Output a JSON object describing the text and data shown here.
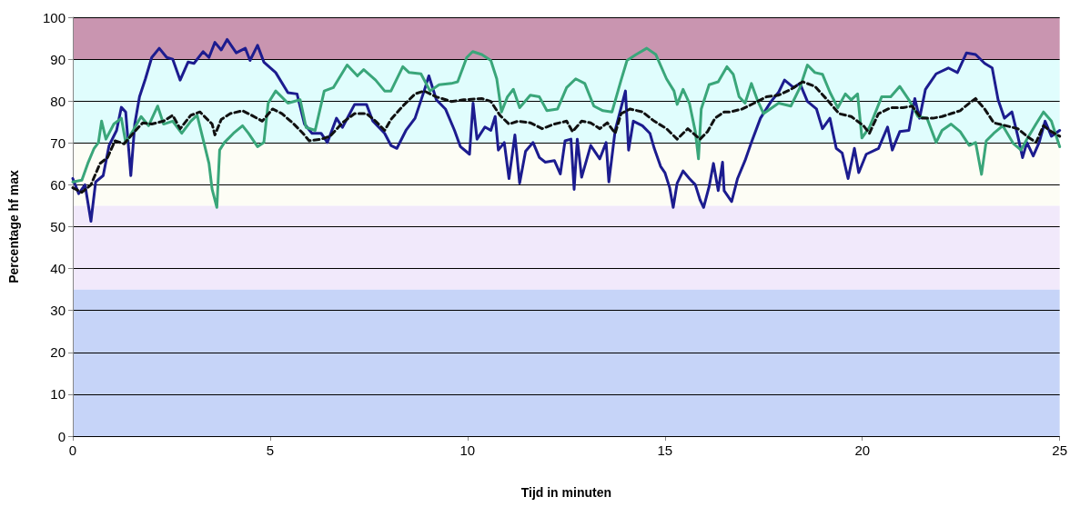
{
  "chart_data": {
    "type": "line",
    "xlabel": "Tijd in minuten",
    "ylabel": "Percentage hf max",
    "xlim": [
      0,
      25
    ],
    "xticks": [
      0,
      5,
      10,
      15,
      20,
      25
    ],
    "ylim": [
      0,
      100
    ],
    "yticks": [
      0,
      10,
      20,
      30,
      40,
      50,
      60,
      70,
      80,
      90,
      100
    ],
    "grid": "y",
    "marker": "none",
    "bands": [
      {
        "axis": "y",
        "from": 90,
        "to": 100,
        "color": "#c995b0"
      },
      {
        "axis": "y",
        "from": 70,
        "to": 90,
        "color": "#e0fdfd"
      },
      {
        "axis": "y",
        "from": 55,
        "to": 70,
        "color": "#fdfdf5"
      },
      {
        "axis": "y",
        "from": 35,
        "to": 55,
        "color": "#f1e9fb"
      },
      {
        "axis": "y",
        "from": 0,
        "to": 35,
        "color": "#c6d4f8"
      }
    ],
    "series": [
      {
        "color": "#1c1c8f",
        "line_style": "solid",
        "x": [
          0,
          0.15,
          0.31,
          0.46,
          0.58,
          0.77,
          0.92,
          1.11,
          1.23,
          1.34,
          1.47,
          1.57,
          1.69,
          1.84,
          2.0,
          2.19,
          2.38,
          2.53,
          2.72,
          2.92,
          3.07,
          3.3,
          3.45,
          3.6,
          3.76,
          3.91,
          4.14,
          4.37,
          4.49,
          4.68,
          4.84,
          5.14,
          5.45,
          5.68,
          5.87,
          6.06,
          6.29,
          6.45,
          6.68,
          6.83,
          7.14,
          7.44,
          7.6,
          7.9,
          8.06,
          8.21,
          8.44,
          8.67,
          8.9,
          9.02,
          9.21,
          9.44,
          9.67,
          9.82,
          10.05,
          10.14,
          10.24,
          10.44,
          10.59,
          10.7,
          10.78,
          10.93,
          11.05,
          11.2,
          11.32,
          11.47,
          11.66,
          11.82,
          11.97,
          12.2,
          12.35,
          12.47,
          12.62,
          12.7,
          12.78,
          12.89,
          13.12,
          13.35,
          13.51,
          13.58,
          13.74,
          14.0,
          14.08,
          14.2,
          14.43,
          14.62,
          14.73,
          14.89,
          15.0,
          15.12,
          15.21,
          15.31,
          15.46,
          15.62,
          15.77,
          15.89,
          15.98,
          16.12,
          16.23,
          16.35,
          16.46,
          16.5,
          16.69,
          16.84,
          17.03,
          17.19,
          17.42,
          17.69,
          17.88,
          18.03,
          18.26,
          18.42,
          18.61,
          18.84,
          18.99,
          19.18,
          19.34,
          19.49,
          19.64,
          19.8,
          19.91,
          20.1,
          20.41,
          20.64,
          20.76,
          20.95,
          21.18,
          21.33,
          21.45,
          21.6,
          21.87,
          22.18,
          22.41,
          22.64,
          22.87,
          23.1,
          23.29,
          23.44,
          23.6,
          23.79,
          23.94,
          24.06,
          24.17,
          24.33,
          24.48,
          24.63,
          24.79,
          25
        ],
        "values": [
          61.5,
          57.9,
          60,
          51.3,
          60.7,
          62.2,
          69.4,
          73,
          78.5,
          77.4,
          62.2,
          74.5,
          81,
          85.3,
          90.4,
          92.6,
          90.4,
          90,
          85,
          89.3,
          89,
          91.8,
          90.4,
          94,
          92.2,
          94.7,
          91.5,
          92.6,
          89.7,
          93.3,
          89.3,
          86.8,
          82,
          81.7,
          74.5,
          72.3,
          72.3,
          70.1,
          75.9,
          73.7,
          79.2,
          79.2,
          75.2,
          72.3,
          69.4,
          68.7,
          73,
          75.9,
          82.4,
          86,
          80.3,
          78.1,
          73,
          69.1,
          67.3,
          79.5,
          70.9,
          73.8,
          73,
          76.3,
          68.3,
          70.1,
          61.5,
          71.9,
          60.4,
          68,
          70.1,
          66.5,
          65.4,
          65.8,
          62.6,
          70.5,
          70.9,
          58.9,
          70.9,
          61.8,
          69.4,
          66.2,
          70.1,
          60.7,
          73,
          82.4,
          68.3,
          75.2,
          74.1,
          72.3,
          68.7,
          64.4,
          62.9,
          59.3,
          54.6,
          60.4,
          63.3,
          61.5,
          60,
          56.4,
          54.6,
          59.6,
          65.1,
          58.6,
          65.4,
          58.6,
          56,
          61.5,
          65.8,
          70.1,
          75.9,
          79.9,
          82.1,
          85,
          83.2,
          84.2,
          79.9,
          78.1,
          73.4,
          75.9,
          68.7,
          67.6,
          61.5,
          68.7,
          62.9,
          67.3,
          68.7,
          73.8,
          68.3,
          72.7,
          73,
          80.6,
          75.9,
          82.8,
          86.5,
          87.9,
          86.8,
          91.5,
          91.1,
          89,
          87.9,
          80.3,
          75.9,
          77.4,
          71.6,
          66.5,
          70.1,
          66.9,
          70.1,
          75.2,
          71.6,
          73
        ]
      },
      {
        "color": "#3aa67a",
        "line_style": "solid",
        "x": [
          0,
          0.23,
          0.38,
          0.54,
          0.65,
          0.73,
          0.84,
          1.04,
          1.23,
          1.34,
          1.53,
          1.73,
          1.92,
          2.15,
          2.3,
          2.53,
          2.76,
          2.99,
          3.15,
          3.3,
          3.45,
          3.53,
          3.65,
          3.72,
          3.84,
          4.07,
          4.3,
          4.45,
          4.68,
          4.84,
          4.95,
          5.14,
          5.45,
          5.76,
          5.91,
          6.14,
          6.37,
          6.6,
          6.95,
          7.21,
          7.37,
          7.67,
          7.9,
          8.06,
          8.36,
          8.52,
          8.82,
          9.05,
          9.28,
          9.59,
          9.75,
          9.98,
          10.13,
          10.36,
          10.59,
          10.74,
          10.86,
          11.01,
          11.16,
          11.32,
          11.59,
          11.82,
          12.01,
          12.28,
          12.51,
          12.74,
          12.97,
          13.2,
          13.43,
          13.66,
          13.89,
          14.04,
          14.27,
          14.54,
          14.77,
          15.04,
          15.23,
          15.31,
          15.46,
          15.62,
          15.77,
          15.85,
          15.92,
          16.12,
          16.35,
          16.57,
          16.73,
          16.88,
          17.03,
          17.19,
          17.34,
          17.5,
          17.88,
          18.19,
          18.42,
          18.61,
          18.8,
          18.99,
          19.18,
          19.38,
          19.57,
          19.72,
          19.88,
          19.99,
          20.18,
          20.49,
          20.72,
          20.95,
          21.18,
          21.41,
          21.64,
          21.87,
          22.02,
          22.25,
          22.48,
          22.71,
          22.87,
          23.02,
          23.14,
          23.33,
          23.56,
          23.83,
          24.02,
          24.17,
          24.4,
          24.59,
          24.79,
          25
        ],
        "values": [
          60.7,
          61.1,
          65.1,
          68.7,
          70.1,
          75.2,
          70.9,
          74.5,
          75.9,
          70.1,
          73,
          76.3,
          74.1,
          78.8,
          74.5,
          75.2,
          72.3,
          75.2,
          76.6,
          70.9,
          65.1,
          58.9,
          54.6,
          68.3,
          70.1,
          72.3,
          74.1,
          72.3,
          69.1,
          70.1,
          79.5,
          82.4,
          79.5,
          80.3,
          73.7,
          73,
          82.4,
          83.2,
          88.6,
          86,
          87.5,
          85,
          82.4,
          82.4,
          88.2,
          86.8,
          86.5,
          82.4,
          83.9,
          84.2,
          84.6,
          90.4,
          91.8,
          91.1,
          89.7,
          85.3,
          77.4,
          81,
          82.8,
          78.4,
          81.4,
          81,
          77.7,
          78.1,
          83.2,
          85.3,
          84.2,
          78.8,
          77.7,
          77.4,
          85,
          89.7,
          91.1,
          92.6,
          91.1,
          85.3,
          82.4,
          79.2,
          82.8,
          79.5,
          72.7,
          66.2,
          78.1,
          83.9,
          84.6,
          88.2,
          86.4,
          81,
          79.5,
          84.2,
          80.3,
          77,
          79.5,
          78.8,
          83.2,
          88.6,
          86.8,
          86.4,
          82.1,
          78.4,
          81.7,
          80.3,
          81.7,
          71.2,
          73.7,
          81,
          81,
          83.5,
          80.3,
          76.3,
          75.9,
          70.1,
          73,
          74.5,
          72.7,
          69.4,
          70.1,
          62.5,
          70.5,
          72.3,
          74.1,
          69.8,
          68.3,
          70.9,
          74.5,
          77.4,
          75.2,
          69.1
        ]
      },
      {
        "color": "#111111",
        "line_style": "dashed",
        "x": [
          0,
          0.23,
          0.46,
          0.69,
          0.88,
          1.07,
          1.3,
          1.53,
          1.77,
          2.0,
          2.3,
          2.53,
          2.72,
          2.99,
          3.22,
          3.53,
          3.6,
          3.76,
          3.99,
          4.3,
          4.53,
          4.8,
          5.06,
          5.3,
          5.6,
          5.83,
          5.99,
          6.29,
          6.52,
          6.83,
          7.14,
          7.44,
          7.67,
          7.9,
          8.06,
          8.36,
          8.67,
          8.9,
          9.21,
          9.59,
          9.9,
          10.36,
          10.59,
          10.82,
          11.05,
          11.28,
          11.59,
          11.89,
          12.2,
          12.51,
          12.66,
          12.89,
          13.12,
          13.35,
          13.54,
          13.74,
          13.89,
          14.12,
          14.43,
          14.73,
          15.04,
          15.31,
          15.58,
          15.89,
          16.08,
          16.27,
          16.5,
          16.65,
          16.96,
          17.26,
          17.57,
          17.88,
          18.19,
          18.49,
          18.8,
          19.11,
          19.41,
          19.72,
          20.03,
          20.18,
          20.41,
          20.72,
          21.03,
          21.26,
          21.49,
          21.79,
          22.02,
          22.25,
          22.48,
          22.71,
          22.87,
          23.1,
          23.33,
          23.64,
          23.94,
          24.17,
          24.4,
          24.59,
          24.79,
          25
        ],
        "values": [
          59.3,
          58.2,
          60,
          65.1,
          66.5,
          70.5,
          69.8,
          72.3,
          74.8,
          74.5,
          75.2,
          76.6,
          73.4,
          76.6,
          77.4,
          74.5,
          71.9,
          75.6,
          77,
          77.7,
          76.6,
          75.2,
          78.1,
          77,
          74.5,
          72.3,
          70.5,
          70.9,
          71.6,
          74.8,
          77,
          77,
          75.2,
          73,
          75.6,
          78.8,
          81.7,
          82.4,
          81,
          79.9,
          80.3,
          80.6,
          79.9,
          76.6,
          74.5,
          75.2,
          74.8,
          73.4,
          74.5,
          75.2,
          72.7,
          75.2,
          74.8,
          73.4,
          74.8,
          72.3,
          77,
          78.1,
          77.4,
          75.2,
          73.4,
          70.9,
          73.4,
          70.9,
          72.7,
          75.9,
          77.4,
          77.4,
          78.1,
          79.5,
          81,
          81.4,
          82.8,
          84.6,
          83.5,
          80.3,
          77,
          76.3,
          74.1,
          72.3,
          77,
          78.4,
          78.4,
          78.8,
          75.9,
          75.9,
          76.3,
          77,
          77.7,
          79.5,
          80.6,
          78.1,
          74.8,
          74.1,
          73.4,
          71.6,
          70.1,
          74.1,
          72.7,
          71.6
        ]
      }
    ]
  }
}
